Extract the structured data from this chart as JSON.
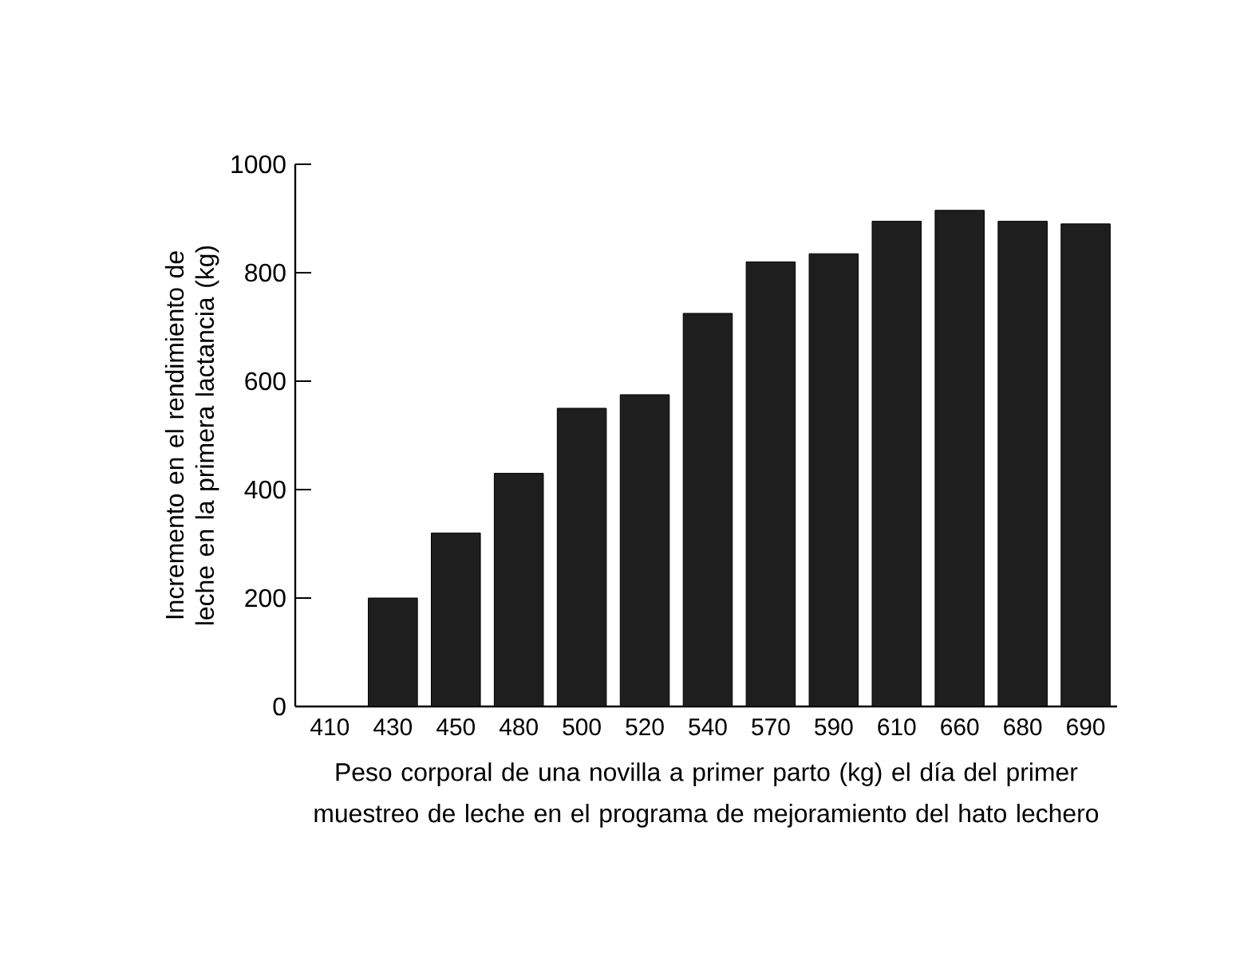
{
  "chart_data": {
    "type": "bar",
    "categories": [
      "410",
      "430",
      "450",
      "480",
      "500",
      "520",
      "540",
      "570",
      "590",
      "610",
      "660",
      "680",
      "690"
    ],
    "values": [
      null,
      200,
      320,
      430,
      550,
      575,
      725,
      820,
      835,
      895,
      915,
      895,
      890
    ],
    "color": "#1e1e1e",
    "ylim": [
      0,
      1000
    ],
    "yticks": [
      0,
      200,
      400,
      600,
      800,
      1000
    ],
    "xlabel": "Peso corporal de una novilla a primer parto (kg) el día del primer muestreo de leche en el programa de mejoramiento del hato lechero",
    "ylabel": "Incremento en el rendimiento de leche en la primera lactancia (kg)"
  }
}
